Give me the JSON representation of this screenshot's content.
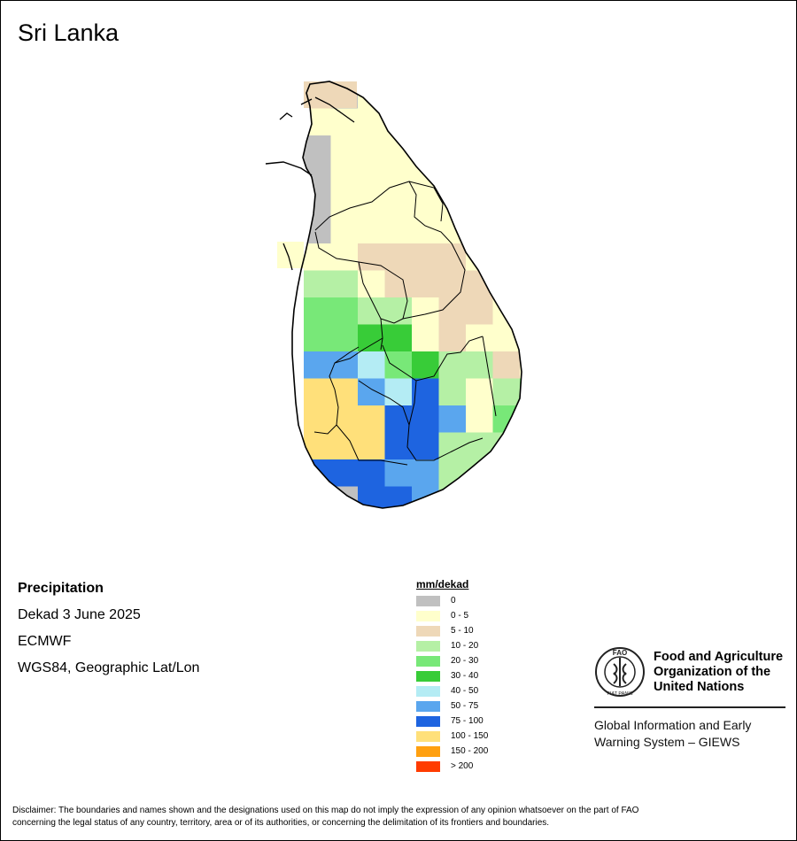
{
  "title": "Sri Lanka",
  "info": {
    "variable": "Precipitation",
    "period": "Dekad 3 June 2025",
    "source": "ECMWF",
    "projection": "WGS84, Geographic Lat/Lon"
  },
  "legend": {
    "title": "mm/dekad",
    "items": [
      {
        "label": "0",
        "color": "#c0c0c0"
      },
      {
        "label": "0 - 5",
        "color": "#ffffcc"
      },
      {
        "label": "5 - 10",
        "color": "#eed8b8"
      },
      {
        "label": "10 - 20",
        "color": "#b5f0a5"
      },
      {
        "label": "20 - 30",
        "color": "#78e878"
      },
      {
        "label": "30 - 40",
        "color": "#38cc38"
      },
      {
        "label": "40 - 50",
        "color": "#b4ecf4"
      },
      {
        "label": "50 - 75",
        "color": "#5aa6ee"
      },
      {
        "label": "75 - 100",
        "color": "#1e64e0"
      },
      {
        "label": "100 - 150",
        "color": "#ffe07a"
      },
      {
        "label": "150 - 200",
        "color": "#ffa010"
      },
      {
        "label": "> 200",
        "color": "#ff3c00"
      }
    ]
  },
  "fao": {
    "name_line1": "Food and Agriculture",
    "name_line2": "Organization of the",
    "name_line3": "United Nations",
    "logo_letters": "FAO",
    "logo_motto": "FIAT PANIS",
    "giews_line1": "Global Information and Early",
    "giews_line2": "Warning System – GIEWS"
  },
  "disclaimer": {
    "line1": "Disclaimer: The boundaries and names shown and the designations used on this map do not imply the expression of any opinion whatsoever on the part of FAO",
    "line2": "concerning the legal status of any country, territory, area or of its authorities, or concerning the delimitation of its frontiers and boundaries."
  }
}
